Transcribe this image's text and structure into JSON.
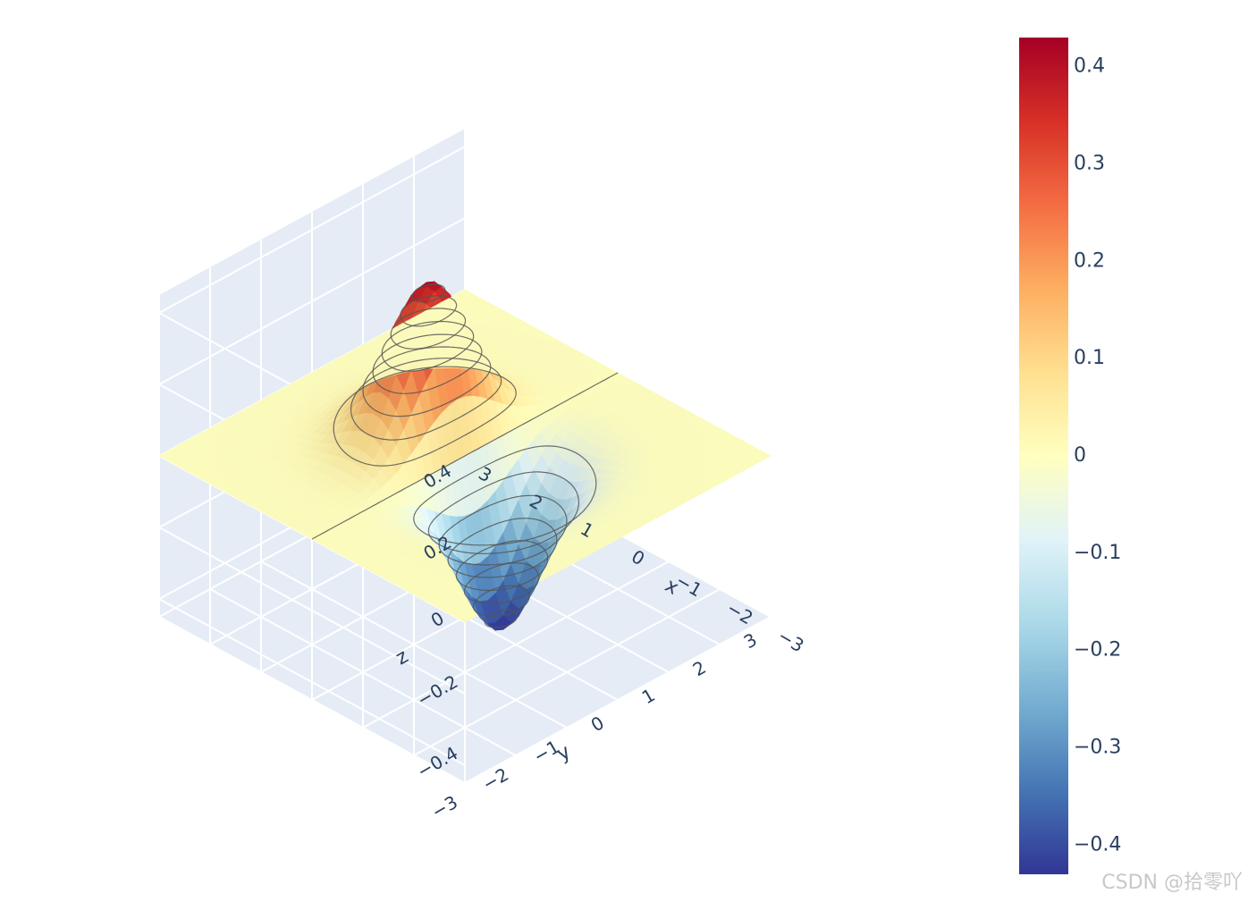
{
  "chart_data": {
    "type": "surface",
    "function": "x*exp(-(x^2+y^2))",
    "x_range": [
      -3,
      3
    ],
    "y_range": [
      -3,
      3
    ],
    "z_range": [
      -0.45,
      0.45
    ],
    "x_ticks": [
      "−3",
      "−2",
      "−1",
      "0",
      "1",
      "2",
      "3"
    ],
    "y_ticks": [
      "−3",
      "−2",
      "−1",
      "0",
      "1",
      "2",
      "3"
    ],
    "z_ticks": [
      "−0.4",
      "−0.2",
      "0",
      "0.2",
      "0.4"
    ],
    "xlabel": "x",
    "ylabel": "y",
    "zlabel": "z",
    "colorscale": "RdYlBu (reversed)",
    "colorbar_range": [
      -0.43,
      0.43
    ],
    "colorbar_ticks": [
      "0.4",
      "0.3",
      "0.2",
      "0.1",
      "0",
      "−0.1",
      "−0.2",
      "−0.3",
      "−0.4"
    ],
    "contour_levels": [
      -0.4,
      -0.35,
      -0.3,
      -0.25,
      -0.2,
      -0.15,
      -0.1,
      -0.05,
      0,
      0.05,
      0.1,
      0.15,
      0.2,
      0.25,
      0.3,
      0.35,
      0.4
    ],
    "colors": {
      "scene_bg": "#e5ecf6",
      "grid": "#ffffff",
      "text": "#2a3f5f",
      "contour": "#555555"
    }
  },
  "watermark": "CSDN @拾零吖"
}
